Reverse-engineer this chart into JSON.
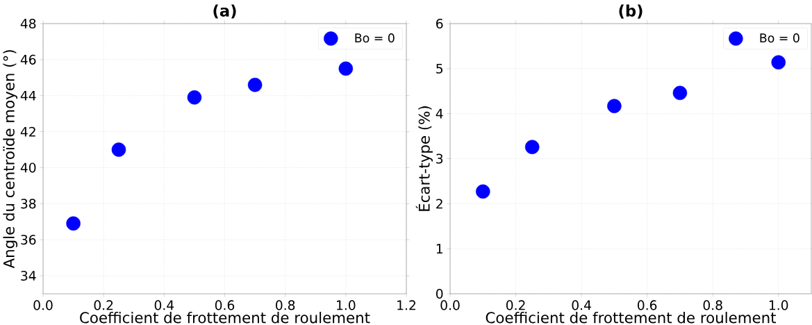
{
  "chart_data": [
    {
      "type": "scatter",
      "title": "(a)",
      "xlabel": "Coefficient de frottement de roulement",
      "ylabel": "Angle du centroïde moyen (°)",
      "x": [
        0.1,
        0.25,
        0.5,
        0.7,
        1.0
      ],
      "series": [
        {
          "name": "Bo = 0",
          "color": "#0000ff",
          "values": [
            36.9,
            41.0,
            43.9,
            44.6,
            45.5
          ]
        }
      ],
      "xlim": [
        0,
        1.2
      ],
      "ylim": [
        33,
        48
      ],
      "xticks": [
        {
          "value": 0,
          "label": "0.0"
        },
        {
          "value": 0.2,
          "label": "0.2"
        },
        {
          "value": 0.4,
          "label": "0.4"
        },
        {
          "value": 0.6,
          "label": "0.6"
        },
        {
          "value": 0.8,
          "label": "0.8"
        },
        {
          "value": 1.0,
          "label": "1.0"
        },
        {
          "value": 1.2,
          "label": "1.2"
        }
      ],
      "yticks": [
        34,
        36,
        38,
        40,
        42,
        44,
        46,
        48
      ],
      "grid": true,
      "legend": "top right"
    },
    {
      "type": "scatter",
      "title": "(b)",
      "xlabel": "Coefficient de frottement de roulement",
      "ylabel": "Écart-type (%)",
      "x": [
        0.1,
        0.25,
        0.5,
        0.7,
        1.0
      ],
      "series": [
        {
          "name": "Bo = 0",
          "color": "#0000ff",
          "values": [
            2.27,
            3.26,
            4.17,
            4.46,
            5.14
          ]
        }
      ],
      "xlim": [
        0,
        1.1
      ],
      "ylim": [
        0,
        6
      ],
      "xticks": [
        {
          "value": 0,
          "label": "0.0"
        },
        {
          "value": 0.2,
          "label": "0.2"
        },
        {
          "value": 0.4,
          "label": "0.4"
        },
        {
          "value": 0.6,
          "label": "0.6"
        },
        {
          "value": 0.8,
          "label": "0.8"
        },
        {
          "value": 1.0,
          "label": "1.0"
        }
      ],
      "yticks": [
        0,
        1,
        2,
        3,
        4,
        5,
        6
      ],
      "grid": true,
      "legend": "top right"
    }
  ]
}
